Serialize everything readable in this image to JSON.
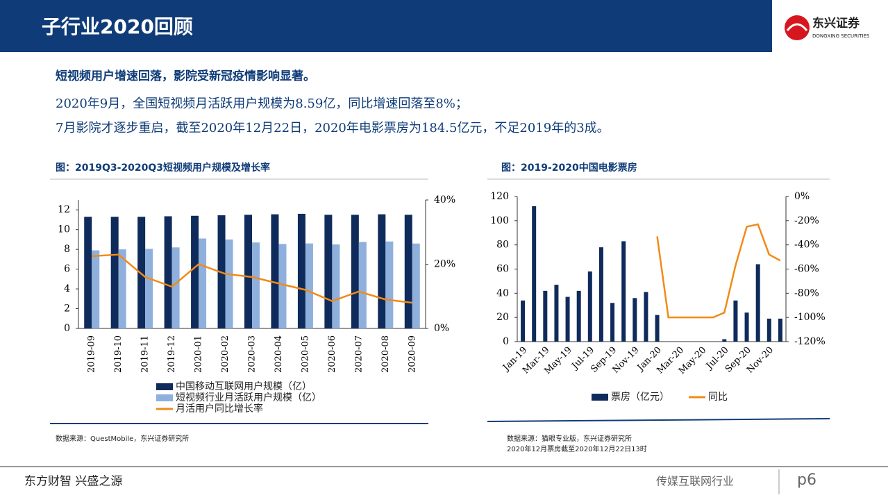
{
  "header": {
    "title": "子行业2020回顾",
    "logo_text": "东兴证券",
    "logo_sub": "DONGXING SECURITIES"
  },
  "summary": {
    "heading": "短视频用户增速回落，影院受新冠疫情影响显著。",
    "lines": [
      "2020年9月，全国短视频月活跃用户规模为8.59亿，同比增速回落至8%；",
      "7月影院才逐步重启，截至2020年12月22日，2020年电影票房为184.5亿元，不足2019年的3成。"
    ]
  },
  "sources": [
    "数据来源：QuestMobile，东兴证券研究所",
    "数据来源：猫眼专业版，东兴证券研究所",
    "2020年12月票房截至2020年12月22日13时"
  ],
  "footer": {
    "slogan": "东方财智 兴盛之源",
    "sector": "传媒互联网行业",
    "page": "p6"
  },
  "chart_data": [
    {
      "type": "bar",
      "title": "图：2019Q3-2020Q3短视频用户规模及增长率",
      "categories": [
        "2019-09",
        "2019-10",
        "2019-11",
        "2019-12",
        "2020-01",
        "2020-02",
        "2020-03",
        "2020-04",
        "2020-05",
        "2020-06",
        "2020-07",
        "2020-08",
        "2020-09"
      ],
      "series": [
        {
          "name": "中国移动互联网用户规模（亿）",
          "color": "#0f2b5b",
          "values": [
            11.3,
            11.3,
            11.3,
            11.35,
            11.4,
            11.45,
            11.5,
            11.55,
            11.6,
            11.5,
            11.5,
            11.55,
            11.5
          ]
        },
        {
          "name": "短视频行业月活跃用户规模（亿）",
          "color": "#8fb0dc",
          "values": [
            7.9,
            8.0,
            8.05,
            8.2,
            9.1,
            9.0,
            8.7,
            8.55,
            8.6,
            8.5,
            8.75,
            8.8,
            8.59
          ]
        },
        {
          "name": "月活用户同比增长率",
          "color": "#f28a16",
          "type": "line",
          "axis": "y2",
          "values": [
            22.5,
            23,
            16,
            13,
            20,
            17,
            16,
            14,
            12,
            8.5,
            11.5,
            9,
            8
          ]
        }
      ],
      "ylim": [
        0,
        13
      ],
      "yticks": [
        0,
        2,
        4,
        6,
        8,
        10,
        12
      ],
      "y2lim": [
        0,
        40
      ],
      "y2ticks": [
        {
          "value": 0,
          "label": "0%"
        },
        {
          "value": 20,
          "label": "20%"
        },
        {
          "value": 40,
          "label": "40%"
        }
      ],
      "legend": "bottom"
    },
    {
      "type": "bar",
      "title": "图：2019-2020中国电影票房",
      "categories": [
        "Jan-19",
        null,
        "Mar-19",
        null,
        "May-19",
        null,
        "Jul-19",
        null,
        "Sep-19",
        null,
        "Nov-19",
        null,
        "Jan-20",
        null,
        "Mar-20",
        null,
        "May-20",
        null,
        "Jul-20",
        null,
        "Sep-20",
        null,
        "Nov-20",
        null
      ],
      "series": [
        {
          "name": "票房（亿元）",
          "color": "#0f2b5b",
          "values": [
            34,
            112,
            42,
            47,
            37,
            42,
            58,
            78,
            32,
            83,
            36,
            41,
            22,
            0,
            0,
            0,
            0,
            0,
            2,
            34,
            24,
            64,
            19,
            19
          ]
        },
        {
          "name": "同比",
          "color": "#f28a16",
          "type": "line",
          "axis": "y2",
          "values": [
            null,
            null,
            null,
            null,
            null,
            null,
            null,
            null,
            null,
            null,
            null,
            null,
            -33,
            -100,
            -100,
            -100,
            -100,
            -100,
            -96,
            -57,
            -25,
            -23,
            -48,
            -53
          ]
        }
      ],
      "ylim": [
        0,
        120
      ],
      "yticks": [
        0,
        20,
        40,
        60,
        80,
        100,
        120
      ],
      "y2lim": [
        -120,
        0
      ],
      "y2ticks": [
        {
          "value": -120,
          "label": "-120%"
        },
        {
          "value": -100,
          "label": "-100%"
        },
        {
          "value": -80,
          "label": "-80%"
        },
        {
          "value": -60,
          "label": "-60%"
        },
        {
          "value": -40,
          "label": "-40%"
        },
        {
          "value": -20,
          "label": "-20%"
        },
        {
          "value": 0,
          "label": "0%"
        }
      ],
      "legend": "bottom"
    }
  ]
}
